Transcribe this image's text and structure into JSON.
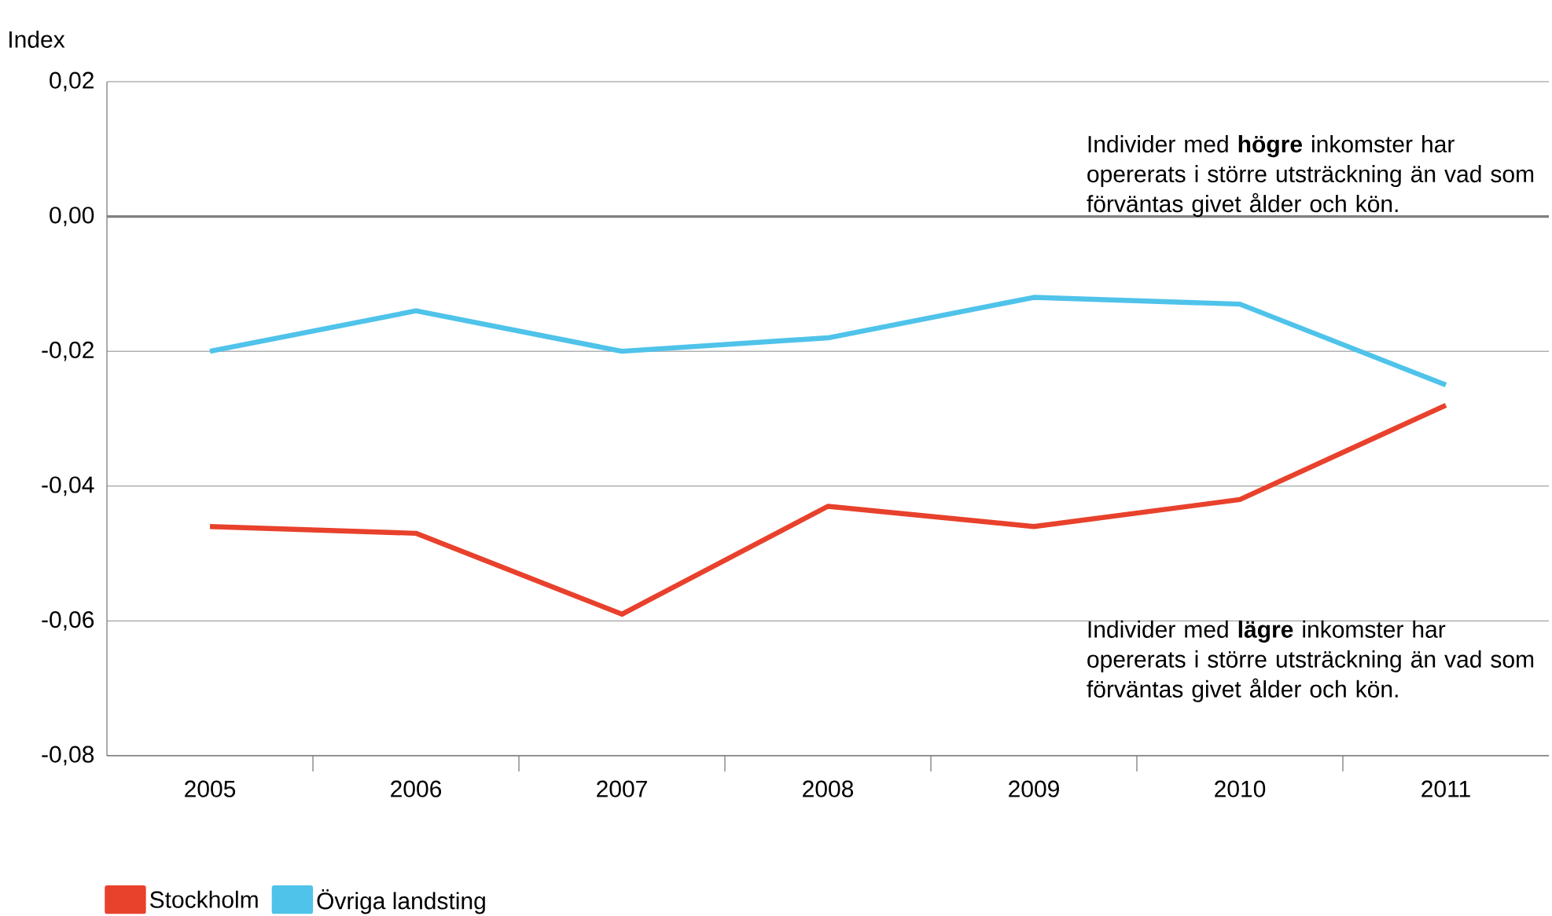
{
  "chart_data": {
    "type": "line",
    "ylabel": "Index",
    "categories": [
      "2005",
      "2006",
      "2007",
      "2008",
      "2009",
      "2010",
      "2011"
    ],
    "series": [
      {
        "name": "Stockholm",
        "color": "#e8412c",
        "values": [
          -0.046,
          -0.047,
          -0.059,
          -0.043,
          -0.046,
          -0.042,
          -0.028
        ]
      },
      {
        "name": "Övriga landsting",
        "color": "#4fc3ea",
        "values": [
          -0.02,
          -0.014,
          -0.02,
          -0.018,
          -0.012,
          -0.013,
          -0.025
        ]
      }
    ],
    "ylim": [
      -0.08,
      0.02
    ],
    "yticks": [
      {
        "value": -0.08,
        "label": "-0,08"
      },
      {
        "value": -0.06,
        "label": "-0,06"
      },
      {
        "value": -0.04,
        "label": "-0,04"
      },
      {
        "value": -0.02,
        "label": "-0,02"
      },
      {
        "value": 0,
        "label": "0,00"
      },
      {
        "value": 0.02,
        "label": "0,02"
      }
    ],
    "grid": "y",
    "legend": "bottom left",
    "line_style": "solid",
    "ref_lines": [
      {
        "axis": "y",
        "value": 0,
        "color": "#808080"
      }
    ],
    "annotations": [
      "Individer med **högre** inkomster har opererats i större utsträckning än vad som förväntas givet ålder och kön.",
      "Individer med **lägre** inkomster har opererats i större utsträckning än vad som förväntas givet ålder och kön."
    ]
  }
}
